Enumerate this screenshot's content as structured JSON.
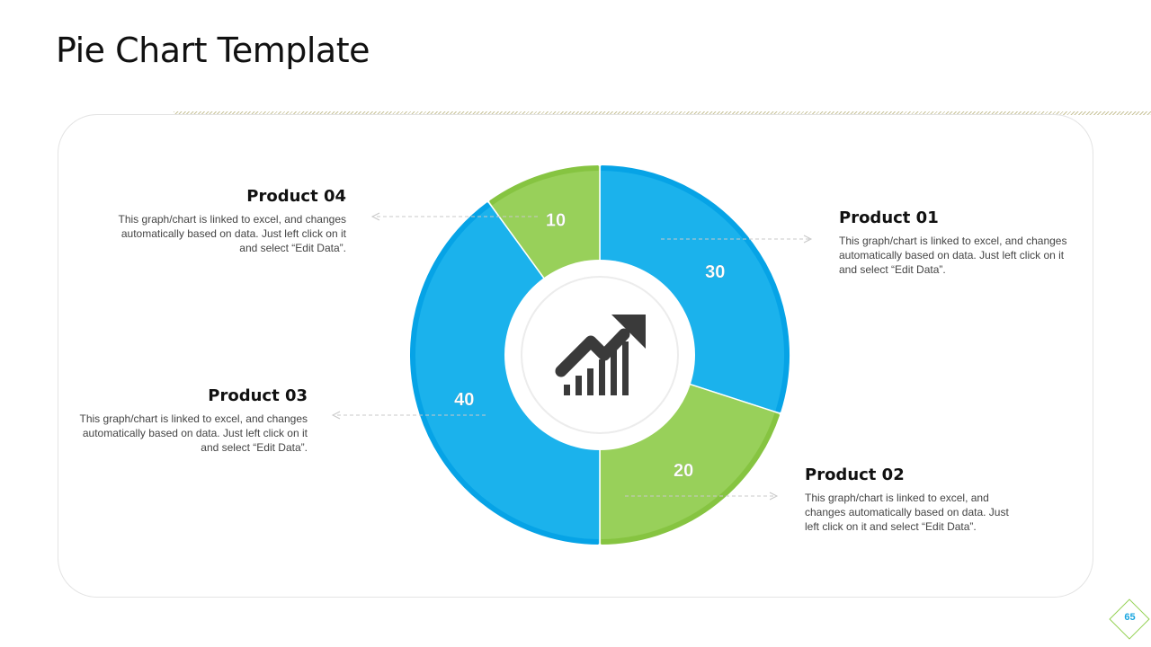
{
  "title": "Pie Chart Template",
  "page_number": "65",
  "colors": {
    "blue": "#1bb2ec",
    "blue_dark": "#06a3e6",
    "green": "#98d05a",
    "green_dark": "#86c441",
    "icon": "#3a3a3a"
  },
  "center_icon": "growth-chart-arrow-icon",
  "chart_data": {
    "type": "pie",
    "style": "donut",
    "categories": [
      "Product 01",
      "Product 02",
      "Product 03",
      "Product 04"
    ],
    "values": [
      30,
      20,
      40,
      10
    ],
    "labels": [
      "30",
      "20",
      "40",
      "10"
    ]
  },
  "products": [
    {
      "name": "Product 01",
      "description": "This graph/chart is linked to excel, and changes automatically based on data. Just left click on it and select “Edit Data”."
    },
    {
      "name": "Product 02",
      "description": "This graph/chart is linked to excel, and changes automatically based on data. Just left click on it and select “Edit Data”."
    },
    {
      "name": "Product 03",
      "description": "This graph/chart is linked to excel, and changes automatically based on data. Just left click on it and select “Edit Data”."
    },
    {
      "name": "Product 04",
      "description": "This graph/chart is linked to excel, and changes automatically based on data. Just left click on it and select “Edit Data”."
    }
  ]
}
